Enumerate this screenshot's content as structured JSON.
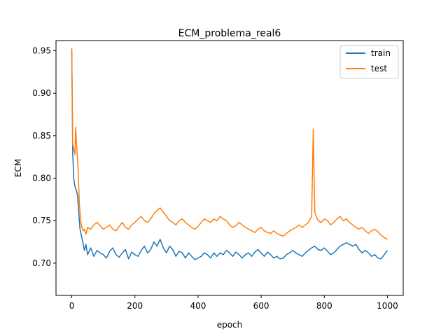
{
  "chart_data": {
    "type": "line",
    "title": "ECM_problema_real6",
    "xlabel": "epoch",
    "ylabel": "ECM",
    "xlim": [
      -50,
      1050
    ],
    "ylim": [
      0.662,
      0.962
    ],
    "xticks": [
      0,
      200,
      400,
      600,
      800,
      1000
    ],
    "yticks": [
      0.7,
      0.75,
      0.8,
      0.85,
      0.9,
      0.95
    ],
    "xtick_labels": [
      "0",
      "200",
      "400",
      "600",
      "800",
      "1000"
    ],
    "ytick_labels": [
      "0.70",
      "0.75",
      "0.80",
      "0.85",
      "0.90",
      "0.95"
    ],
    "legend_position": "top-right",
    "grid": false,
    "series": [
      {
        "name": "train",
        "color": "#1f77b4",
        "points": [
          [
            0,
            0.95
          ],
          [
            3,
            0.83
          ],
          [
            6,
            0.8
          ],
          [
            10,
            0.79
          ],
          [
            14,
            0.786
          ],
          [
            18,
            0.78
          ],
          [
            22,
            0.76
          ],
          [
            26,
            0.74
          ],
          [
            30,
            0.733
          ],
          [
            35,
            0.725
          ],
          [
            40,
            0.715
          ],
          [
            45,
            0.722
          ],
          [
            50,
            0.71
          ],
          [
            60,
            0.718
          ],
          [
            70,
            0.708
          ],
          [
            80,
            0.715
          ],
          [
            90,
            0.712
          ],
          [
            100,
            0.71
          ],
          [
            110,
            0.706
          ],
          [
            120,
            0.714
          ],
          [
            130,
            0.718
          ],
          [
            140,
            0.71
          ],
          [
            150,
            0.707
          ],
          [
            160,
            0.712
          ],
          [
            170,
            0.716
          ],
          [
            180,
            0.705
          ],
          [
            190,
            0.713
          ],
          [
            200,
            0.71
          ],
          [
            210,
            0.708
          ],
          [
            220,
            0.715
          ],
          [
            230,
            0.72
          ],
          [
            240,
            0.712
          ],
          [
            250,
            0.716
          ],
          [
            260,
            0.725
          ],
          [
            270,
            0.72
          ],
          [
            280,
            0.728
          ],
          [
            290,
            0.718
          ],
          [
            300,
            0.712
          ],
          [
            310,
            0.72
          ],
          [
            320,
            0.716
          ],
          [
            330,
            0.708
          ],
          [
            340,
            0.714
          ],
          [
            350,
            0.712
          ],
          [
            360,
            0.706
          ],
          [
            370,
            0.712
          ],
          [
            380,
            0.708
          ],
          [
            390,
            0.704
          ],
          [
            400,
            0.706
          ],
          [
            410,
            0.708
          ],
          [
            420,
            0.712
          ],
          [
            430,
            0.71
          ],
          [
            440,
            0.706
          ],
          [
            450,
            0.712
          ],
          [
            460,
            0.708
          ],
          [
            470,
            0.712
          ],
          [
            480,
            0.71
          ],
          [
            490,
            0.715
          ],
          [
            500,
            0.712
          ],
          [
            510,
            0.708
          ],
          [
            520,
            0.713
          ],
          [
            530,
            0.71
          ],
          [
            540,
            0.706
          ],
          [
            550,
            0.71
          ],
          [
            560,
            0.712
          ],
          [
            570,
            0.708
          ],
          [
            580,
            0.713
          ],
          [
            590,
            0.716
          ],
          [
            600,
            0.712
          ],
          [
            610,
            0.708
          ],
          [
            620,
            0.713
          ],
          [
            630,
            0.71
          ],
          [
            640,
            0.706
          ],
          [
            650,
            0.708
          ],
          [
            660,
            0.705
          ],
          [
            670,
            0.706
          ],
          [
            680,
            0.71
          ],
          [
            690,
            0.712
          ],
          [
            700,
            0.715
          ],
          [
            710,
            0.712
          ],
          [
            720,
            0.71
          ],
          [
            730,
            0.708
          ],
          [
            740,
            0.712
          ],
          [
            750,
            0.715
          ],
          [
            760,
            0.718
          ],
          [
            770,
            0.72
          ],
          [
            780,
            0.716
          ],
          [
            790,
            0.715
          ],
          [
            800,
            0.718
          ],
          [
            810,
            0.714
          ],
          [
            820,
            0.71
          ],
          [
            830,
            0.712
          ],
          [
            840,
            0.716
          ],
          [
            850,
            0.72
          ],
          [
            860,
            0.722
          ],
          [
            870,
            0.724
          ],
          [
            880,
            0.722
          ],
          [
            890,
            0.72
          ],
          [
            900,
            0.722
          ],
          [
            910,
            0.716
          ],
          [
            920,
            0.712
          ],
          [
            930,
            0.715
          ],
          [
            940,
            0.712
          ],
          [
            950,
            0.708
          ],
          [
            960,
            0.71
          ],
          [
            970,
            0.706
          ],
          [
            980,
            0.705
          ],
          [
            990,
            0.71
          ],
          [
            1000,
            0.715
          ]
        ]
      },
      {
        "name": "test",
        "color": "#ff7f0e",
        "points": [
          [
            0,
            0.953
          ],
          [
            3,
            0.84
          ],
          [
            6,
            0.835
          ],
          [
            10,
            0.828
          ],
          [
            12,
            0.86
          ],
          [
            16,
            0.835
          ],
          [
            20,
            0.81
          ],
          [
            24,
            0.77
          ],
          [
            28,
            0.75
          ],
          [
            32,
            0.742
          ],
          [
            36,
            0.738
          ],
          [
            40,
            0.74
          ],
          [
            45,
            0.734
          ],
          [
            50,
            0.742
          ],
          [
            60,
            0.74
          ],
          [
            70,
            0.745
          ],
          [
            80,
            0.748
          ],
          [
            90,
            0.744
          ],
          [
            100,
            0.74
          ],
          [
            110,
            0.742
          ],
          [
            120,
            0.745
          ],
          [
            130,
            0.74
          ],
          [
            140,
            0.738
          ],
          [
            150,
            0.743
          ],
          [
            160,
            0.748
          ],
          [
            170,
            0.742
          ],
          [
            180,
            0.74
          ],
          [
            190,
            0.745
          ],
          [
            200,
            0.748
          ],
          [
            210,
            0.752
          ],
          [
            220,
            0.755
          ],
          [
            230,
            0.75
          ],
          [
            240,
            0.748
          ],
          [
            250,
            0.752
          ],
          [
            260,
            0.758
          ],
          [
            270,
            0.762
          ],
          [
            280,
            0.765
          ],
          [
            290,
            0.76
          ],
          [
            300,
            0.755
          ],
          [
            310,
            0.75
          ],
          [
            320,
            0.748
          ],
          [
            330,
            0.745
          ],
          [
            340,
            0.75
          ],
          [
            350,
            0.752
          ],
          [
            360,
            0.748
          ],
          [
            370,
            0.745
          ],
          [
            380,
            0.742
          ],
          [
            390,
            0.74
          ],
          [
            400,
            0.743
          ],
          [
            410,
            0.748
          ],
          [
            420,
            0.752
          ],
          [
            430,
            0.75
          ],
          [
            440,
            0.748
          ],
          [
            450,
            0.752
          ],
          [
            460,
            0.75
          ],
          [
            470,
            0.755
          ],
          [
            480,
            0.752
          ],
          [
            490,
            0.75
          ],
          [
            500,
            0.745
          ],
          [
            510,
            0.742
          ],
          [
            520,
            0.744
          ],
          [
            530,
            0.748
          ],
          [
            540,
            0.745
          ],
          [
            550,
            0.742
          ],
          [
            560,
            0.74
          ],
          [
            570,
            0.738
          ],
          [
            580,
            0.736
          ],
          [
            590,
            0.74
          ],
          [
            600,
            0.742
          ],
          [
            610,
            0.738
          ],
          [
            620,
            0.736
          ],
          [
            630,
            0.735
          ],
          [
            640,
            0.738
          ],
          [
            650,
            0.735
          ],
          [
            660,
            0.733
          ],
          [
            670,
            0.732
          ],
          [
            680,
            0.735
          ],
          [
            690,
            0.738
          ],
          [
            700,
            0.74
          ],
          [
            710,
            0.742
          ],
          [
            720,
            0.745
          ],
          [
            730,
            0.742
          ],
          [
            740,
            0.745
          ],
          [
            750,
            0.748
          ],
          [
            760,
            0.755
          ],
          [
            765,
            0.858
          ],
          [
            770,
            0.76
          ],
          [
            780,
            0.75
          ],
          [
            790,
            0.748
          ],
          [
            800,
            0.752
          ],
          [
            810,
            0.75
          ],
          [
            820,
            0.745
          ],
          [
            830,
            0.748
          ],
          [
            840,
            0.752
          ],
          [
            850,
            0.755
          ],
          [
            860,
            0.75
          ],
          [
            870,
            0.752
          ],
          [
            880,
            0.748
          ],
          [
            890,
            0.745
          ],
          [
            900,
            0.742
          ],
          [
            910,
            0.74
          ],
          [
            920,
            0.742
          ],
          [
            930,
            0.738
          ],
          [
            940,
            0.735
          ],
          [
            950,
            0.738
          ],
          [
            960,
            0.74
          ],
          [
            970,
            0.737
          ],
          [
            980,
            0.733
          ],
          [
            990,
            0.73
          ],
          [
            1000,
            0.728
          ]
        ]
      }
    ]
  }
}
